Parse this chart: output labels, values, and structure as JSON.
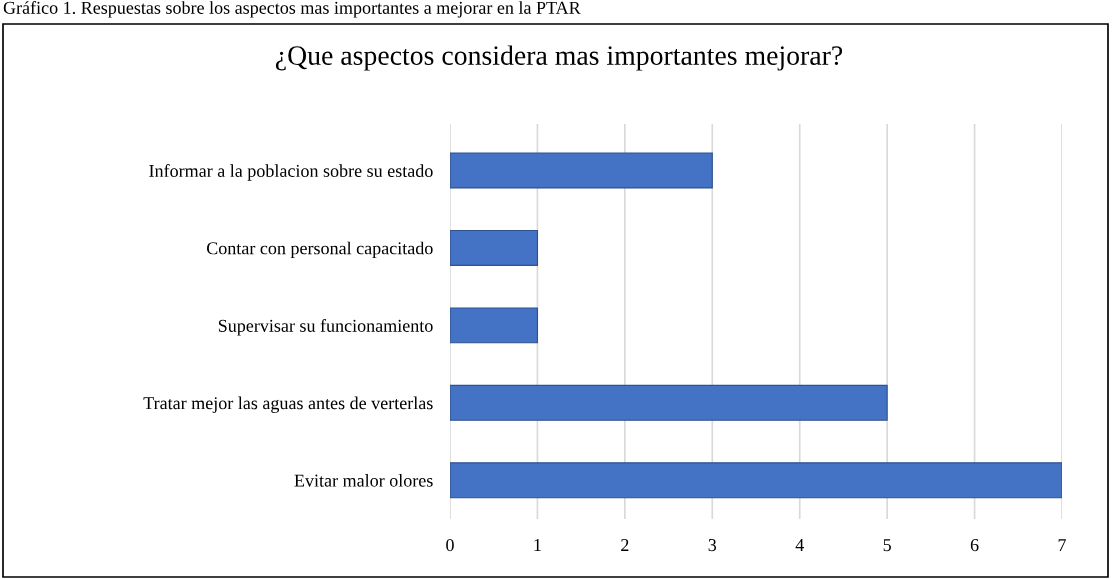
{
  "chart_data": {
    "type": "bar",
    "orientation": "horizontal",
    "title": "¿Que aspectos considera mas importantes mejorar?",
    "annotations": [
      "Gráfico 1. Respuestas sobre los aspectos mas importantes a mejorar en la PTAR"
    ],
    "categories": [
      "Informar a la poblacion sobre su estado",
      "Contar con personal capacitado",
      "Supervisar su funcionamiento",
      "Tratar mejor las aguas antes de verterlas",
      "Evitar malor olores"
    ],
    "values": [
      3,
      1,
      1,
      5,
      7
    ],
    "color": "#4472c4",
    "xlim": [
      0,
      7
    ],
    "xticks": [
      0,
      1,
      2,
      3,
      4,
      5,
      6,
      7
    ],
    "grid": "x",
    "legend": false
  }
}
